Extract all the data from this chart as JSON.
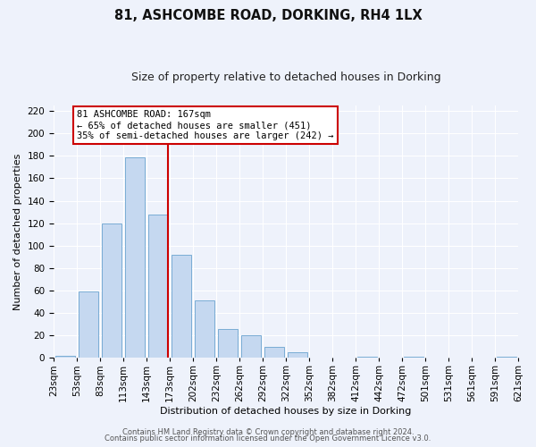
{
  "title": "81, ASHCOMBE ROAD, DORKING, RH4 1LX",
  "subtitle": "Size of property relative to detached houses in Dorking",
  "xlabel": "Distribution of detached houses by size in Dorking",
  "ylabel": "Number of detached properties",
  "bar_values": [
    2,
    59,
    120,
    179,
    128,
    92,
    51,
    26,
    20,
    10,
    5,
    0,
    0,
    1,
    0,
    1,
    0,
    0,
    0,
    1
  ],
  "bin_labels": [
    "23sqm",
    "53sqm",
    "83sqm",
    "113sqm",
    "143sqm",
    "173sqm",
    "202sqm",
    "232sqm",
    "262sqm",
    "292sqm",
    "322sqm",
    "352sqm",
    "382sqm",
    "412sqm",
    "442sqm",
    "472sqm",
    "501sqm",
    "531sqm",
    "561sqm",
    "591sqm",
    "621sqm"
  ],
  "bar_color": "#c5d8f0",
  "bar_edgecolor": "#7aadd4",
  "background_color": "#eef2fb",
  "grid_color": "#ffffff",
  "vline_color": "#cc0000",
  "vline_x": 4.93,
  "annotation_text": "81 ASHCOMBE ROAD: 167sqm\n← 65% of detached houses are smaller (451)\n35% of semi-detached houses are larger (242) →",
  "annotation_box_edgecolor": "#cc0000",
  "ylim": [
    0,
    225
  ],
  "yticks": [
    0,
    20,
    40,
    60,
    80,
    100,
    120,
    140,
    160,
    180,
    200,
    220
  ],
  "footer_line1": "Contains HM Land Registry data © Crown copyright and database right 2024.",
  "footer_line2": "Contains public sector information licensed under the Open Government Licence v3.0.",
  "title_fontsize": 10.5,
  "subtitle_fontsize": 9,
  "axis_label_fontsize": 8,
  "tick_fontsize": 7.5,
  "footer_fontsize": 6
}
